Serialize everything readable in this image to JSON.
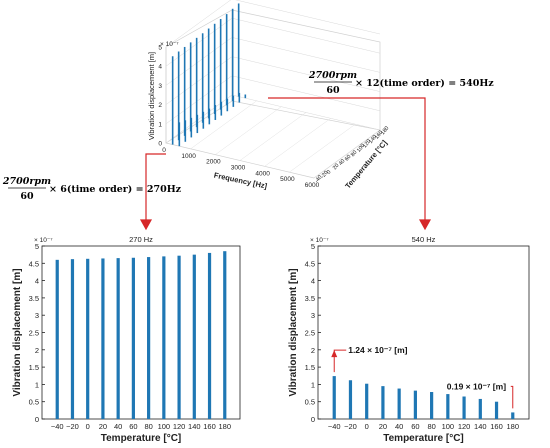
{
  "charts": {
    "overview": {
      "type": "bar",
      "view": "3d-waterfall",
      "x": {
        "label": "Frequency [Hz]",
        "ticks": [
          0,
          1000,
          2000,
          3000,
          4000,
          5000,
          6000
        ],
        "range": [
          0,
          6000
        ]
      },
      "y": {
        "label": "Temperature [°C]",
        "ticks": [
          -40,
          -20,
          0,
          20,
          40,
          60,
          80,
          100,
          120,
          140,
          160,
          180
        ]
      },
      "z": {
        "label": "Vibration displacement [m]",
        "ticks": [
          0,
          1,
          2,
          3,
          4,
          5
        ],
        "exponent": "× 10⁻⁷",
        "range": [
          0,
          5
        ]
      },
      "bar_color": "#1f77b4"
    },
    "left": {
      "type": "bar",
      "title": "270 Hz",
      "xlabel": "Temperature [°C]",
      "ylabel": "Vibration displacement [m]",
      "exponent": "× 10⁻⁷",
      "categories": [
        "−40",
        "−20",
        "0",
        "20",
        "40",
        "60",
        "80",
        "100",
        "120",
        "140",
        "160",
        "180"
      ],
      "values": [
        4.6,
        4.62,
        4.63,
        4.64,
        4.65,
        4.66,
        4.68,
        4.7,
        4.72,
        4.75,
        4.8,
        4.85
      ],
      "ylim": [
        0,
        5
      ],
      "yticks": [
        0,
        0.5,
        1,
        1.5,
        2,
        2.5,
        3,
        3.5,
        4,
        4.5,
        5
      ],
      "ytick_labels": [
        "0",
        "0.5",
        "1",
        "1.5",
        "2",
        "2.5",
        "3",
        "3.5",
        "4",
        "4.5",
        "5"
      ],
      "bar_color": "#1f77b4"
    },
    "right": {
      "type": "bar",
      "title": "540 Hz",
      "xlabel": "Temperature [°C]",
      "ylabel": "Vibration displacement [m]",
      "exponent": "× 10⁻⁷",
      "categories": [
        "−40",
        "−20",
        "0",
        "20",
        "40",
        "60",
        "80",
        "100",
        "120",
        "140",
        "160",
        "180"
      ],
      "values": [
        1.24,
        1.12,
        1.02,
        0.95,
        0.88,
        0.82,
        0.78,
        0.72,
        0.65,
        0.58,
        0.5,
        0.19
      ],
      "ylim": [
        0,
        5
      ],
      "yticks": [
        0,
        0.5,
        1,
        1.5,
        2,
        2.5,
        3,
        3.5,
        4,
        4.5,
        5
      ],
      "ytick_labels": [
        "0",
        "0.5",
        "1",
        "1.5",
        "2",
        "2.5",
        "3",
        "3.5",
        "4",
        "4.5",
        "5"
      ],
      "bar_color": "#1f77b4",
      "annotations": [
        {
          "text": "1.24 × 10⁻⁷ [m]",
          "category_index": 0,
          "value": 1.24
        },
        {
          "text": "0.19 × 10⁻⁷ [m]",
          "category_index": 11,
          "value": 0.19
        }
      ]
    }
  },
  "formulas": {
    "f270": {
      "numerator": "2700rpm",
      "denominator": "60",
      "rest": "× 6(time order) = 270Hz"
    },
    "f540": {
      "numerator": "2700rpm",
      "denominator": "60",
      "rest": "× 12(time order) = 540Hz"
    }
  },
  "colors": {
    "bar": "#1f77b4",
    "arrow": "#d62728",
    "axis": "#222222",
    "grid": "#d9d9d9"
  }
}
